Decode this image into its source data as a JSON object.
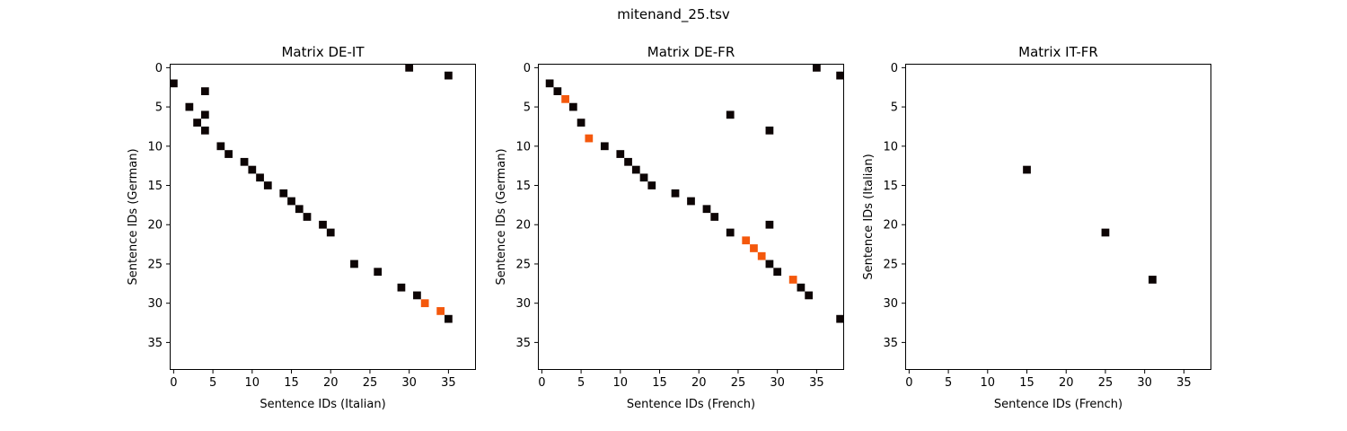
{
  "figure": {
    "title": "mitenand_25.tsv"
  },
  "colors": {
    "match": "#0d0505",
    "highlight": "#f4580c",
    "frame": "#000000",
    "background": "#ffffff"
  },
  "chart_data": [
    {
      "type": "heatmap",
      "title": "Matrix DE-IT",
      "xlabel": "Sentence IDs (Italian)",
      "ylabel": "Sentence IDs (German)",
      "xlim": [
        -0.5,
        38.5
      ],
      "ylim": [
        38.5,
        -0.5
      ],
      "xticks": [
        0,
        5,
        10,
        15,
        20,
        25,
        30,
        35
      ],
      "yticks": [
        0,
        5,
        10,
        15,
        20,
        25,
        30,
        35
      ],
      "cells": [
        {
          "x": 30,
          "y": 0,
          "c": "match"
        },
        {
          "x": 35,
          "y": 1,
          "c": "match"
        },
        {
          "x": 0,
          "y": 2,
          "c": "match"
        },
        {
          "x": 4,
          "y": 3,
          "c": "match"
        },
        {
          "x": 2,
          "y": 5,
          "c": "match"
        },
        {
          "x": 4,
          "y": 6,
          "c": "match"
        },
        {
          "x": 3,
          "y": 7,
          "c": "match"
        },
        {
          "x": 4,
          "y": 8,
          "c": "match"
        },
        {
          "x": 6,
          "y": 10,
          "c": "match"
        },
        {
          "x": 7,
          "y": 11,
          "c": "match"
        },
        {
          "x": 9,
          "y": 12,
          "c": "match"
        },
        {
          "x": 10,
          "y": 13,
          "c": "match"
        },
        {
          "x": 11,
          "y": 14,
          "c": "match"
        },
        {
          "x": 12,
          "y": 15,
          "c": "match"
        },
        {
          "x": 14,
          "y": 16,
          "c": "match"
        },
        {
          "x": 15,
          "y": 17,
          "c": "match"
        },
        {
          "x": 16,
          "y": 18,
          "c": "match"
        },
        {
          "x": 17,
          "y": 19,
          "c": "match"
        },
        {
          "x": 19,
          "y": 20,
          "c": "match"
        },
        {
          "x": 20,
          "y": 21,
          "c": "match"
        },
        {
          "x": 23,
          "y": 25,
          "c": "match"
        },
        {
          "x": 26,
          "y": 26,
          "c": "match"
        },
        {
          "x": 29,
          "y": 28,
          "c": "match"
        },
        {
          "x": 31,
          "y": 29,
          "c": "match"
        },
        {
          "x": 32,
          "y": 30,
          "c": "highlight"
        },
        {
          "x": 34,
          "y": 31,
          "c": "highlight"
        },
        {
          "x": 35,
          "y": 32,
          "c": "match"
        }
      ]
    },
    {
      "type": "heatmap",
      "title": "Matrix DE-FR",
      "xlabel": "Sentence IDs (French)",
      "ylabel": "Sentence IDs (German)",
      "xlim": [
        -0.5,
        38.5
      ],
      "ylim": [
        38.5,
        -0.5
      ],
      "xticks": [
        0,
        5,
        10,
        15,
        20,
        25,
        30,
        35
      ],
      "yticks": [
        0,
        5,
        10,
        15,
        20,
        25,
        30,
        35
      ],
      "cells": [
        {
          "x": 35,
          "y": 0,
          "c": "match"
        },
        {
          "x": 38,
          "y": 1,
          "c": "match"
        },
        {
          "x": 1,
          "y": 2,
          "c": "match"
        },
        {
          "x": 2,
          "y": 3,
          "c": "match"
        },
        {
          "x": 3,
          "y": 4,
          "c": "highlight"
        },
        {
          "x": 4,
          "y": 5,
          "c": "match"
        },
        {
          "x": 24,
          "y": 6,
          "c": "match"
        },
        {
          "x": 5,
          "y": 7,
          "c": "match"
        },
        {
          "x": 29,
          "y": 8,
          "c": "match"
        },
        {
          "x": 6,
          "y": 9,
          "c": "highlight"
        },
        {
          "x": 8,
          "y": 10,
          "c": "match"
        },
        {
          "x": 10,
          "y": 11,
          "c": "match"
        },
        {
          "x": 11,
          "y": 12,
          "c": "match"
        },
        {
          "x": 12,
          "y": 13,
          "c": "match"
        },
        {
          "x": 13,
          "y": 14,
          "c": "match"
        },
        {
          "x": 14,
          "y": 15,
          "c": "match"
        },
        {
          "x": 17,
          "y": 16,
          "c": "match"
        },
        {
          "x": 19,
          "y": 17,
          "c": "match"
        },
        {
          "x": 21,
          "y": 18,
          "c": "match"
        },
        {
          "x": 22,
          "y": 19,
          "c": "match"
        },
        {
          "x": 29,
          "y": 20,
          "c": "match"
        },
        {
          "x": 24,
          "y": 21,
          "c": "match"
        },
        {
          "x": 26,
          "y": 22,
          "c": "highlight"
        },
        {
          "x": 27,
          "y": 23,
          "c": "highlight"
        },
        {
          "x": 28,
          "y": 24,
          "c": "highlight"
        },
        {
          "x": 29,
          "y": 25,
          "c": "match"
        },
        {
          "x": 30,
          "y": 26,
          "c": "match"
        },
        {
          "x": 32,
          "y": 27,
          "c": "highlight"
        },
        {
          "x": 33,
          "y": 28,
          "c": "match"
        },
        {
          "x": 34,
          "y": 29,
          "c": "match"
        },
        {
          "x": 38,
          "y": 32,
          "c": "match"
        }
      ]
    },
    {
      "type": "heatmap",
      "title": "Matrix IT-FR",
      "xlabel": "Sentence IDs (French)",
      "ylabel": "Sentence IDs (Italian)",
      "xlim": [
        -0.5,
        38.5
      ],
      "ylim": [
        38.5,
        -0.5
      ],
      "xticks": [
        0,
        5,
        10,
        15,
        20,
        25,
        30,
        35
      ],
      "yticks": [
        0,
        5,
        10,
        15,
        20,
        25,
        30,
        35
      ],
      "cells": [
        {
          "x": 15,
          "y": 13,
          "c": "match"
        },
        {
          "x": 25,
          "y": 21,
          "c": "match"
        },
        {
          "x": 31,
          "y": 27,
          "c": "match"
        }
      ]
    }
  ]
}
